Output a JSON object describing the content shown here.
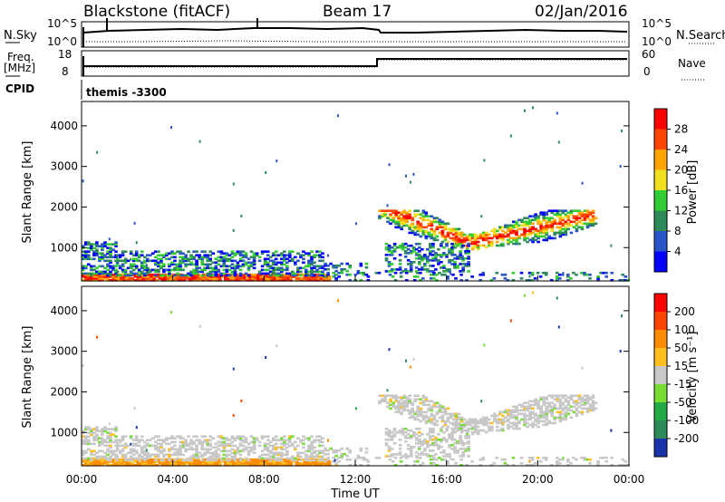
{
  "header": {
    "site": "Blackstone (fitACF)",
    "beam": "Beam 17",
    "date": "02/Jan/2016"
  },
  "top_panels": {
    "noise_left_label": "N.Sky",
    "noise_right_label": "N.Search",
    "noise_ticks": [
      "10^5",
      "10^0"
    ],
    "freq_label_line1": "Freq.",
    "freq_label_line2": "[MHz]",
    "freq_ticks": [
      "18",
      "8"
    ],
    "nave_label": "Nave",
    "nave_ticks": [
      "60",
      "0"
    ],
    "cpid_label": "CPID",
    "cpid_value": "themis -3300"
  },
  "chart_data": [
    {
      "type": "heatmap",
      "ylabel": "Slant Range [km]",
      "xlabel": "Time UT",
      "y_ticks": [
        1000,
        2000,
        3000,
        4000
      ],
      "x_ticks": [
        "00:00",
        "04:00",
        "08:00",
        "12:00",
        "16:00",
        "20:00",
        "00:00"
      ],
      "ylim": [
        180,
        4600
      ],
      "xlim_hours": [
        0,
        24
      ],
      "colorbar": {
        "label": "Power [dB]",
        "ticks": [
          "4",
          "8",
          "12",
          "16",
          "20",
          "24",
          "28"
        ],
        "colors": [
          "#0000ff",
          "#2a55c8",
          "#2e8b57",
          "#33cc33",
          "#f0e020",
          "#ffa500",
          "#ff4500",
          "#ff0000"
        ]
      }
    },
    {
      "type": "heatmap",
      "ylabel": "Slant Range [km]",
      "xlabel": "Time UT",
      "y_ticks": [
        1000,
        2000,
        3000,
        4000
      ],
      "x_ticks": [
        "00:00",
        "04:00",
        "08:00",
        "12:00",
        "16:00",
        "20:00",
        "00:00"
      ],
      "ylim": [
        180,
        4600
      ],
      "xlim_hours": [
        0,
        24
      ],
      "colorbar": {
        "label": "Velocity [m s⁻¹]",
        "ticks": [
          "200",
          "100",
          "50",
          "15",
          "-15",
          "-50",
          "-100",
          "-200"
        ],
        "colors": [
          "#1a33aa",
          "#2e8b57",
          "#22aa44",
          "#77dd33",
          "#c8c8c8",
          "#ffc020",
          "#ff8c00",
          "#ff4500",
          "#ff0000"
        ]
      }
    }
  ],
  "x_axis_label": "Time UT"
}
